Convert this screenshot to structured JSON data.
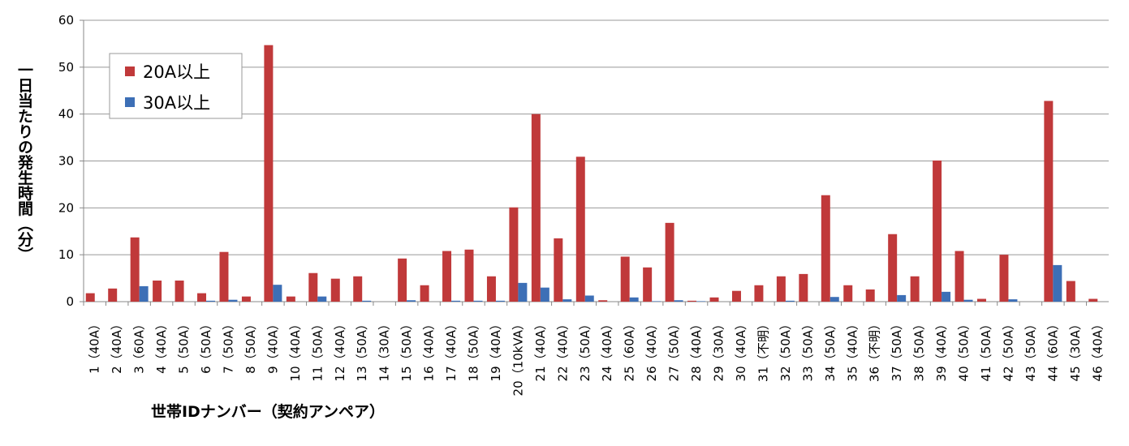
{
  "chart_data": {
    "type": "bar",
    "y_label": "一日当たりの発生時間（分）",
    "x_label": "世帯IDナンバー（契約アンペア）",
    "categories": [
      "1（40A）",
      "2（40A）",
      "3（60A）",
      "4（40A）",
      "5（50A）",
      "6（50A）",
      "7（50A）",
      "8（50A）",
      "9（40A）",
      "10（40A）",
      "11（50A）",
      "12（40A）",
      "13（50A）",
      "14（30A）",
      "15（50A）",
      "16（40A）",
      "17（40A）",
      "18（50A）",
      "19（40A）",
      "20（10kVA）",
      "21（40A）",
      "22（40A）",
      "23（50A）",
      "24（40A）",
      "25（60A）",
      "26（40A）",
      "27（50A）",
      "28（40A）",
      "29（30A）",
      "30（40A）",
      "31（不明）",
      "32（50A）",
      "33（50A）",
      "34（50A）",
      "35（40A）",
      "36（不明）",
      "37（50A）",
      "38（50A）",
      "39（40A）",
      "40（50A）",
      "41（50A）",
      "42（50A）",
      "43（50A）",
      "44（60A）",
      "45（30A）",
      "46（40A）"
    ],
    "series": [
      {
        "name": "20A以上",
        "color": "#c0393a",
        "values": [
          1.8,
          2.8,
          13.7,
          4.5,
          4.5,
          1.8,
          10.6,
          1.1,
          54.7,
          1.1,
          6.1,
          4.9,
          5.4,
          0,
          9.2,
          3.5,
          10.8,
          11.1,
          5.4,
          20.1,
          40,
          13.5,
          30.9,
          0.3,
          9.6,
          7.3,
          16.8,
          0.2,
          0.9,
          2.3,
          3.5,
          5.4,
          5.9,
          22.7,
          3.5,
          2.6,
          14.4,
          5.4,
          30.1,
          10.8,
          0.6,
          10,
          0,
          42.8,
          4.4,
          0.6
        ]
      },
      {
        "name": "30A以上",
        "color": "#3d6fb6",
        "values": [
          0,
          0,
          3.3,
          0,
          0,
          0.2,
          0.4,
          0,
          3.6,
          0,
          1.1,
          0,
          0.2,
          0,
          0.3,
          0,
          0.2,
          0.2,
          0.2,
          4,
          3,
          0.5,
          1.3,
          0,
          0.9,
          0.1,
          0.3,
          0.1,
          0,
          0,
          0,
          0.2,
          0,
          1,
          0,
          0,
          1.4,
          0,
          2.1,
          0.4,
          0,
          0.5,
          0,
          7.8,
          0,
          0
        ]
      }
    ],
    "ylim": [
      0,
      60
    ],
    "yticks": [
      0,
      10,
      20,
      30,
      40,
      50,
      60
    ],
    "grid": true,
    "legend": "top-left"
  }
}
